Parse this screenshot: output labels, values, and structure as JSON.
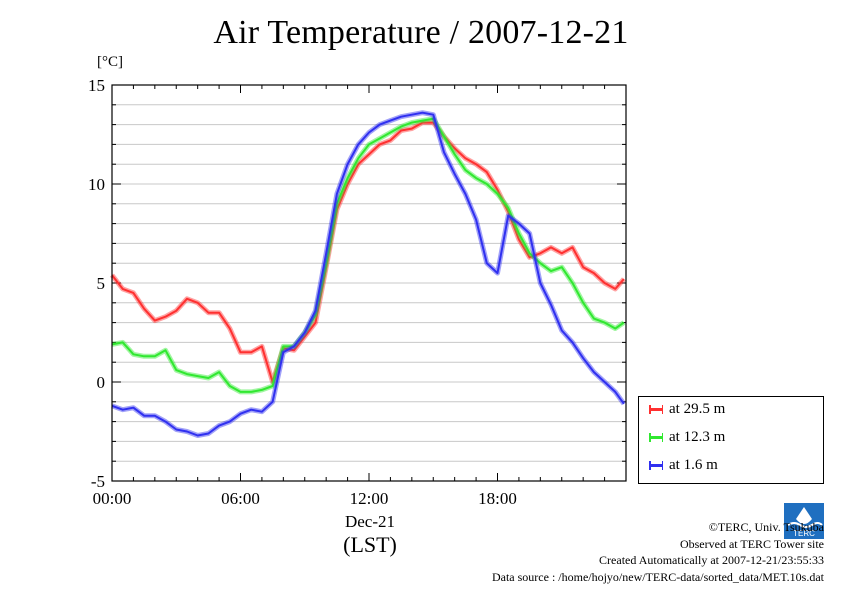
{
  "chart_data": {
    "type": "line",
    "title": "Air Temperature / 2007-12-21",
    "ylabel": "[°C]",
    "xlabel_date": "Dec-21",
    "xlabel_tz": "(LST)",
    "xlim": [
      0,
      24
    ],
    "ylim": [
      -5,
      15
    ],
    "xticks": [
      0,
      6,
      12,
      18
    ],
    "xtick_labels": [
      "00:00",
      "06:00",
      "12:00",
      "18:00"
    ],
    "yticks": [
      -5,
      0,
      5,
      10,
      15
    ],
    "ytick_labels": [
      "-5",
      "0",
      "5",
      "10",
      "15"
    ],
    "grid": "horizontal",
    "legend_position": "bottom-right-outside",
    "series": [
      {
        "name": "at 29.5 m",
        "color": "#ff3030",
        "x": [
          0,
          0.5,
          1,
          1.5,
          2,
          2.5,
          3,
          3.5,
          4,
          4.5,
          5,
          5.5,
          6,
          6.5,
          7,
          7.5,
          8,
          8.5,
          9,
          9.5,
          10,
          10.5,
          11,
          11.5,
          12,
          12.5,
          13,
          13.5,
          14,
          14.5,
          15,
          15.5,
          16,
          16.5,
          17,
          17.5,
          18,
          18.5,
          19,
          19.5,
          20,
          20.5,
          21,
          21.5,
          22,
          22.5,
          23,
          23.5,
          23.9
        ],
        "y": [
          5.4,
          4.7,
          4.5,
          3.7,
          3.1,
          3.3,
          3.6,
          4.2,
          4.0,
          3.5,
          3.5,
          2.7,
          1.5,
          1.5,
          1.8,
          0.0,
          1.7,
          1.6,
          2.3,
          3.0,
          5.8,
          8.7,
          10.0,
          11.0,
          11.5,
          12.0,
          12.2,
          12.7,
          12.8,
          13.1,
          13.1,
          12.4,
          11.8,
          11.3,
          11.0,
          10.6,
          9.7,
          8.6,
          7.2,
          6.3,
          6.5,
          6.8,
          6.5,
          6.8,
          5.8,
          5.5,
          5.0,
          4.7,
          5.2
        ]
      },
      {
        "name": "at 12.3 m",
        "color": "#30e830",
        "x": [
          0,
          0.5,
          1,
          1.5,
          2,
          2.5,
          3,
          3.5,
          4,
          4.5,
          5,
          5.5,
          6,
          6.5,
          7,
          7.5,
          8,
          8.5,
          9,
          9.5,
          10,
          10.5,
          11,
          11.5,
          12,
          12.5,
          13,
          13.5,
          14,
          14.5,
          15,
          15.5,
          16,
          16.5,
          17,
          17.5,
          18,
          18.5,
          19,
          19.5,
          20,
          20.5,
          21,
          21.5,
          22,
          22.5,
          23,
          23.5,
          23.9
        ],
        "y": [
          1.9,
          2.0,
          1.4,
          1.3,
          1.3,
          1.6,
          0.6,
          0.4,
          0.3,
          0.2,
          0.5,
          -0.2,
          -0.5,
          -0.5,
          -0.4,
          -0.2,
          1.8,
          1.8,
          2.5,
          3.4,
          6.0,
          9.0,
          10.3,
          11.3,
          12.0,
          12.3,
          12.6,
          12.9,
          13.1,
          13.2,
          13.3,
          12.4,
          11.5,
          10.7,
          10.3,
          10.0,
          9.5,
          8.8,
          7.5,
          6.5,
          6.0,
          5.6,
          5.8,
          5.0,
          4.0,
          3.2,
          3.0,
          2.7,
          3.0
        ]
      },
      {
        "name": "at 1.6 m",
        "color": "#3030f0",
        "x": [
          0,
          0.5,
          1,
          1.5,
          2,
          2.5,
          3,
          3.5,
          4,
          4.5,
          5,
          5.5,
          6,
          6.5,
          7,
          7.5,
          8,
          8.5,
          9,
          9.5,
          10,
          10.5,
          11,
          11.5,
          12,
          12.5,
          13,
          13.5,
          14,
          14.5,
          15,
          15.5,
          16,
          16.5,
          17,
          17.5,
          18,
          18.5,
          19,
          19.5,
          20,
          20.5,
          21,
          21.5,
          22,
          22.5,
          23,
          23.5,
          23.9
        ],
        "y": [
          -1.2,
          -1.4,
          -1.3,
          -1.7,
          -1.7,
          -2.0,
          -2.4,
          -2.5,
          -2.7,
          -2.6,
          -2.2,
          -2.0,
          -1.6,
          -1.4,
          -1.5,
          -1.0,
          1.5,
          1.8,
          2.5,
          3.6,
          6.5,
          9.5,
          11.0,
          12.0,
          12.6,
          13.0,
          13.2,
          13.4,
          13.5,
          13.6,
          13.5,
          11.6,
          10.5,
          9.5,
          8.2,
          6.0,
          5.5,
          8.4,
          8.0,
          7.5,
          5.0,
          3.9,
          2.6,
          2.0,
          1.2,
          0.5,
          0.0,
          -0.5,
          -1.1
        ]
      }
    ]
  },
  "credits": {
    "copyright": "©TERC, Univ. Tsukuba",
    "observed": "Observed at TERC Tower site",
    "created": "Created Automatically at 2007-12-21/23:55:33",
    "source": "Data source : /home/hojyo/new/TERC-data/sorted_data/MET.10s.dat"
  },
  "logo": {
    "icon": "terc-logo-icon",
    "text": "TERC"
  }
}
